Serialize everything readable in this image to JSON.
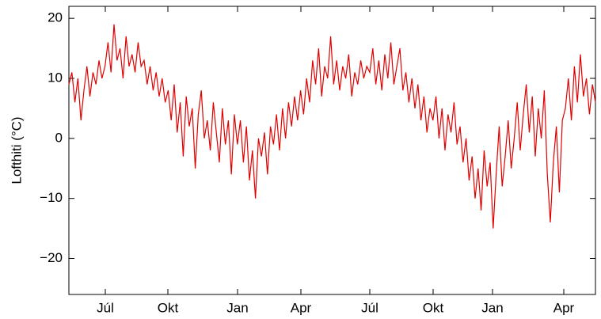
{
  "chart_data": {
    "type": "line",
    "ylabel": "Lofthiti (°C)",
    "color": "#e00000",
    "ylim": [
      -26,
      22
    ],
    "yticks": [
      {
        "value": -20,
        "label": "−20"
      },
      {
        "value": -10,
        "label": "−10"
      },
      0,
      10,
      20
    ],
    "xticklabels": [
      "Júl",
      "Okt",
      "Jan",
      "Apr",
      "Júl",
      "Okt",
      "Jan",
      "Apr"
    ],
    "values": [
      9,
      11,
      6,
      10,
      3,
      8,
      12,
      7,
      11,
      9,
      13,
      10,
      12,
      16,
      11,
      19,
      13,
      15,
      10,
      17,
      12,
      14,
      11,
      16,
      12,
      13,
      9,
      12,
      8,
      11,
      7,
      10,
      6,
      8,
      3,
      9,
      1,
      6,
      -3,
      7,
      2,
      5,
      -5,
      4,
      8,
      0,
      3,
      -2,
      6,
      1,
      -4,
      5,
      -1,
      3,
      -6,
      4,
      -1,
      3,
      -4,
      2,
      -7,
      -2,
      -10,
      0,
      -3,
      1,
      -6,
      2,
      -1,
      4,
      -2,
      5,
      0,
      6,
      2,
      7,
      3,
      8,
      4,
      10,
      6,
      13,
      9,
      15,
      7,
      12,
      10,
      17,
      9,
      13,
      8,
      12,
      10,
      14,
      7,
      11,
      9,
      13,
      10,
      12,
      11,
      15,
      9,
      13,
      8,
      14,
      10,
      16,
      9,
      12,
      15,
      8,
      11,
      6,
      10,
      5,
      9,
      3,
      7,
      1,
      5,
      3,
      7,
      0,
      5,
      -2,
      4,
      1,
      6,
      -1,
      2,
      -4,
      0,
      -7,
      -3,
      -10,
      -5,
      -12,
      -2,
      -8,
      -4,
      -15,
      -6,
      2,
      -8,
      -3,
      3,
      -5,
      0,
      6,
      -2,
      4,
      9,
      1,
      7,
      -3,
      5,
      0,
      8,
      -6,
      -14,
      -4,
      2,
      -9,
      3,
      5,
      10,
      3,
      12,
      6,
      14,
      7,
      10,
      4,
      9,
      6
    ]
  }
}
